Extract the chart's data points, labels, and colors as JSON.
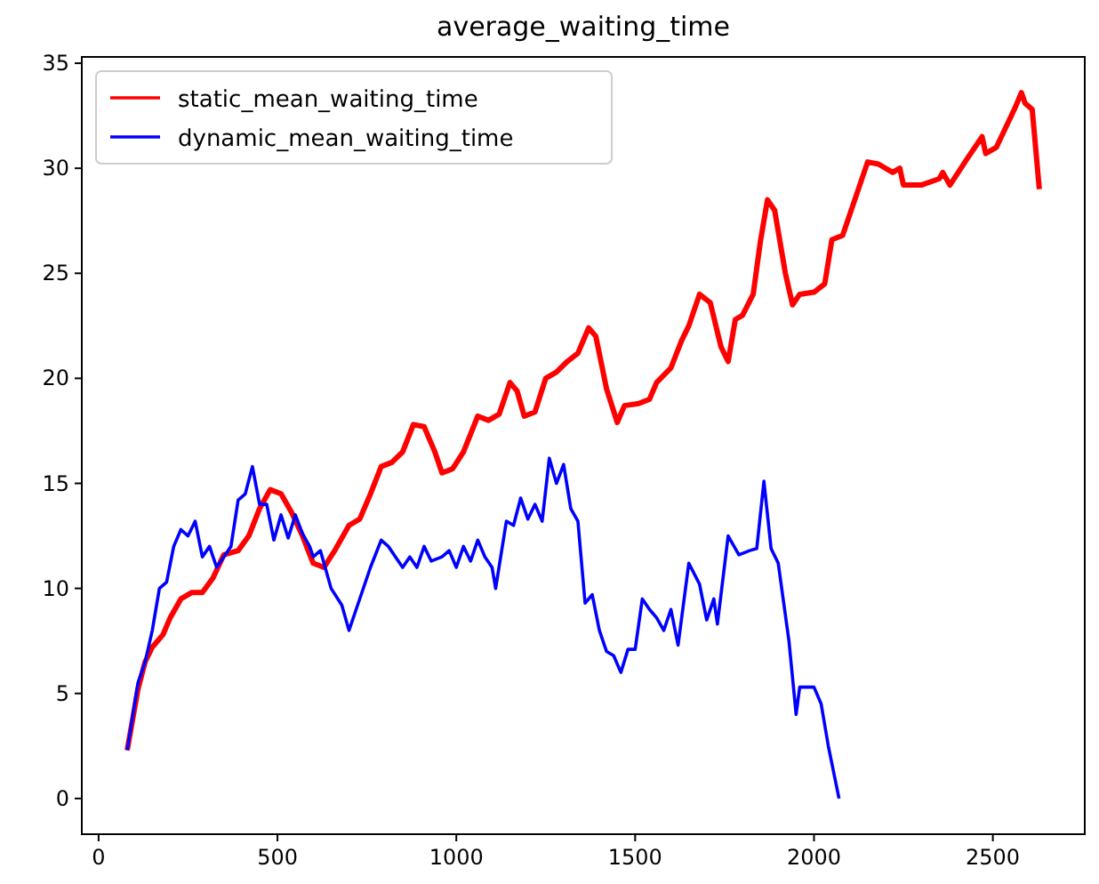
{
  "chart_data": {
    "type": "line",
    "title": "average_waiting_time",
    "xlim": [
      -47,
      2757
    ],
    "ylim": [
      -1.7,
      35.3
    ],
    "xticks": [
      0,
      500,
      1000,
      1500,
      2000,
      2500
    ],
    "yticks": [
      0,
      5,
      10,
      15,
      20,
      25,
      30,
      35
    ],
    "legend": "top left",
    "grid": false,
    "series": [
      {
        "name": "static_mean_waiting_time",
        "color": "#ff0000",
        "x": [
          80,
          110,
          130,
          150,
          180,
          200,
          230,
          260,
          290,
          320,
          350,
          390,
          420,
          450,
          480,
          510,
          540,
          570,
          600,
          630,
          660,
          700,
          730,
          760,
          790,
          820,
          850,
          880,
          910,
          940,
          960,
          990,
          1020,
          1060,
          1090,
          1120,
          1150,
          1170,
          1190,
          1220,
          1250,
          1280,
          1310,
          1340,
          1370,
          1390,
          1420,
          1450,
          1470,
          1510,
          1540,
          1560,
          1600,
          1630,
          1650,
          1680,
          1710,
          1740,
          1760,
          1780,
          1800,
          1830,
          1850,
          1870,
          1890,
          1920,
          1940,
          1960,
          2000,
          2030,
          2050,
          2080,
          2110,
          2150,
          2180,
          2220,
          2240,
          2250,
          2300,
          2350,
          2360,
          2380,
          2430,
          2470,
          2480,
          2510,
          2560,
          2580,
          2590,
          2610,
          2630
        ],
        "values": [
          2.3,
          5.2,
          6.5,
          7.2,
          7.8,
          8.6,
          9.5,
          9.8,
          9.8,
          10.5,
          11.6,
          11.8,
          12.5,
          13.8,
          14.7,
          14.5,
          13.6,
          12.5,
          11.2,
          11,
          11.8,
          13,
          13.3,
          14.5,
          15.8,
          16,
          16.5,
          17.8,
          17.7,
          16.5,
          15.5,
          15.7,
          16.5,
          18.2,
          18,
          18.3,
          19.8,
          19.4,
          18.2,
          18.4,
          20,
          20.3,
          20.8,
          21.2,
          22.4,
          22,
          19.5,
          17.9,
          18.7,
          18.8,
          19,
          19.8,
          20.5,
          21.8,
          22.5,
          24,
          23.6,
          21.5,
          20.8,
          22.8,
          23,
          24,
          26.5,
          28.5,
          28,
          25,
          23.5,
          24,
          24.1,
          24.5,
          26.6,
          26.8,
          28.3,
          30.3,
          30.2,
          29.8,
          30,
          29.2,
          29.2,
          29.5,
          29.8,
          29.2,
          30.5,
          31.5,
          30.7,
          31,
          32.8,
          33.6,
          33.1,
          32.8,
          29
        ]
      },
      {
        "name": "dynamic_mean_waiting_time",
        "color": "#0000ff",
        "x": [
          80,
          110,
          130,
          150,
          170,
          190,
          210,
          230,
          250,
          270,
          290,
          310,
          330,
          350,
          370,
          390,
          410,
          430,
          450,
          470,
          490,
          510,
          530,
          550,
          570,
          590,
          600,
          620,
          650,
          680,
          700,
          720,
          760,
          790,
          810,
          830,
          850,
          870,
          890,
          910,
          930,
          960,
          980,
          1000,
          1020,
          1040,
          1060,
          1080,
          1100,
          1110,
          1140,
          1160,
          1180,
          1200,
          1220,
          1240,
          1260,
          1280,
          1300,
          1320,
          1340,
          1360,
          1380,
          1400,
          1420,
          1440,
          1460,
          1480,
          1500,
          1520,
          1540,
          1560,
          1580,
          1600,
          1620,
          1650,
          1680,
          1700,
          1720,
          1730,
          1760,
          1790,
          1820,
          1840,
          1860,
          1880,
          1900,
          1930,
          1950,
          1960,
          2000,
          2020,
          2040,
          2070
        ],
        "values": [
          2.3,
          5.5,
          6.5,
          8,
          10,
          10.3,
          12,
          12.8,
          12.5,
          13.2,
          11.5,
          12,
          11,
          11.5,
          12,
          14.2,
          14.5,
          15.8,
          14,
          14,
          12.3,
          13.5,
          12.4,
          13.5,
          12.6,
          12,
          11.5,
          11.8,
          10,
          9.2,
          8,
          9,
          11,
          12.3,
          12,
          11.5,
          11,
          11.5,
          11,
          12,
          11.3,
          11.5,
          11.8,
          11,
          12,
          11.3,
          12.3,
          11.5,
          11,
          10,
          13.2,
          13,
          14.3,
          13.3,
          14,
          13.2,
          16.2,
          15,
          15.9,
          13.8,
          13.2,
          9.3,
          9.7,
          8,
          7,
          6.8,
          6,
          7.1,
          7.1,
          9.5,
          9,
          8.6,
          8,
          9,
          7.3,
          11.2,
          10.2,
          8.5,
          9.5,
          8.3,
          12.5,
          11.6,
          11.8,
          11.9,
          15.1,
          11.9,
          11.2,
          7.5,
          4,
          5.3,
          5.3,
          4.5,
          2.5,
          0
        ]
      }
    ]
  }
}
